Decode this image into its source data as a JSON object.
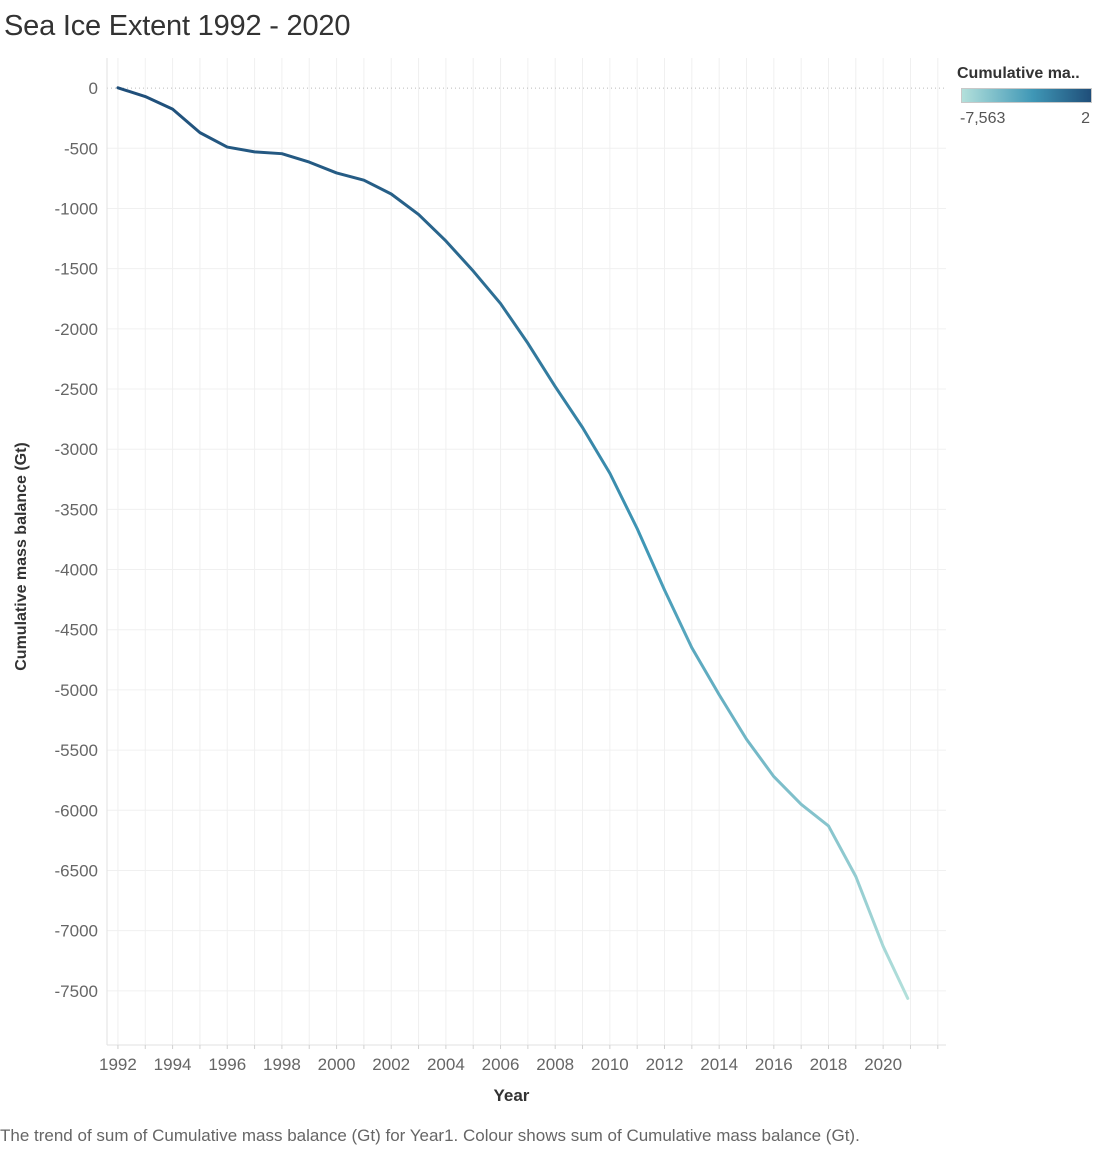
{
  "title": "Sea Ice Extent 1992 - 2020",
  "legend": {
    "title": "Cumulative ma..",
    "min_label": "-7,563",
    "max_label": "2",
    "color_low": "#b3e0db",
    "color_mid": "#3f97b6",
    "color_high": "#1f4e79"
  },
  "caption": "The trend of sum of Cumulative mass balance (Gt) for Year1.  Colour shows sum of Cumulative mass balance (Gt).",
  "chart_data": {
    "type": "line",
    "xlabel": "Year",
    "ylabel": "Cumulative mass balance (Gt)",
    "xlim": [
      1991.6,
      2022.3
    ],
    "ylim": [
      -7950,
      250
    ],
    "x_ticks": [
      1992,
      1994,
      1996,
      1998,
      2000,
      2002,
      2004,
      2006,
      2008,
      2010,
      2012,
      2014,
      2016,
      2018,
      2020
    ],
    "y_ticks": [
      0,
      -500,
      -1000,
      -1500,
      -2000,
      -2500,
      -3000,
      -3500,
      -4000,
      -4500,
      -5000,
      -5500,
      -6000,
      -6500,
      -7000,
      -7500
    ],
    "color_range": [
      -7563,
      2
    ],
    "grid": true,
    "zero_line": "dotted",
    "series": [
      {
        "x": [
          1992,
          1993,
          1994,
          1995,
          1996,
          1997,
          1998,
          1999,
          2000,
          2001,
          2002,
          2003,
          2004,
          2005,
          2006,
          2007,
          2008,
          2009,
          2010,
          2011,
          2012,
          2013,
          2014,
          2015,
          2016,
          2017,
          2018,
          2019,
          2020,
          2020.9
        ],
        "y": [
          2,
          -70,
          -175,
          -370,
          -490,
          -530,
          -545,
          -615,
          -705,
          -765,
          -880,
          -1050,
          -1270,
          -1520,
          -1790,
          -2120,
          -2480,
          -2820,
          -3200,
          -3660,
          -4170,
          -4650,
          -5040,
          -5410,
          -5720,
          -5950,
          -6130,
          -6550,
          -7130,
          -7563
        ]
      }
    ]
  }
}
